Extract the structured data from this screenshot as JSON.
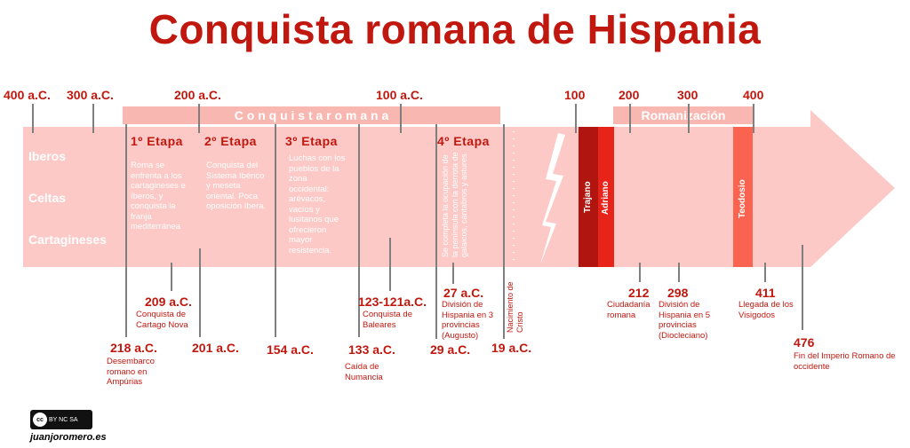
{
  "title": "Conquista romana de Hispania",
  "top_dates": [
    "400 a.C.",
    "300 a.C.",
    "200 a.C.",
    "100 a.C.",
    "100",
    "200",
    "300",
    "400"
  ],
  "bands": {
    "conquista": "C o n q u i s t a     r o m a n a",
    "romanizacion": "Romanización"
  },
  "peoples": [
    "Iberos",
    "Celtas",
    "Cartagineses"
  ],
  "etapas": [
    {
      "label": "1º  Etapa",
      "desc": "Roma se enfrenta a los cartagineses e íberos, y conquista la franja mediterránea"
    },
    {
      "label": "2º  Etapa",
      "desc": "Conquista del Sistema Ibérico y meseta oriental. Poca oposición íbera."
    },
    {
      "label": "3º  Etapa",
      "desc": "Luchas con los pueblos de la zona occidental: arévacos, vacíos y lusitanos que ofrecieron mayor resistencia."
    },
    {
      "label": "4º  Etapa",
      "desc": "Se completa la ocupación de la península con la derrota de galaicos, cántabros y astures."
    }
  ],
  "emperors": {
    "trajano": "Trajano",
    "adriano": "Adriano",
    "teodosio": "Teodosio"
  },
  "events": {
    "e209": {
      "date": "209 a.C.",
      "desc": "Conquista de Cartago Nova"
    },
    "e218": {
      "date": "218 a.C.",
      "desc": "Desembarco romano en Ampúrias"
    },
    "e201": {
      "date": "201 a.C.",
      "desc": ""
    },
    "e154": {
      "date": "154 a.C.",
      "desc": ""
    },
    "e123": {
      "date": "123-121a.C.",
      "desc": "Conquista de Baleares"
    },
    "e133": {
      "date": "133 a.C.",
      "desc": "Caída de Numancia"
    },
    "e27": {
      "date": "27 a.C.",
      "desc": "División de Hispania en 3 provincias (Augusto)"
    },
    "e29": {
      "date": "29 a.C.",
      "desc": ""
    },
    "e19": {
      "date": "19 a.C.",
      "desc": "Nacimiento de Cristo"
    },
    "e212": {
      "date": "212",
      "desc": "Ciudadanía romana"
    },
    "e298": {
      "date": "298",
      "desc": "División de Hispania en 5 provincias (Diocleciano)"
    },
    "e411": {
      "date": "411",
      "desc": "Llegada de los Visigodos"
    },
    "e476": {
      "date": "476",
      "desc": "Fin del Imperio Romano de occidente"
    }
  },
  "license": {
    "logo": "cc",
    "terms": "BY  NC  SA"
  },
  "author": "juanjoromero.es",
  "colors": {
    "title": "#c0170f",
    "arrow": "#fcc9c6",
    "band": "#f9b7b2",
    "trajano": "#b01510",
    "adriano": "#e8241a",
    "teodosio": "#fa6350"
  }
}
